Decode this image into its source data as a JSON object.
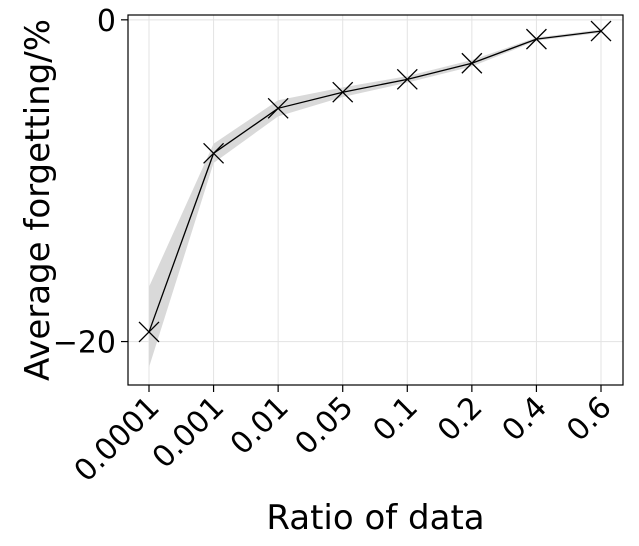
{
  "chart_data": {
    "type": "line",
    "xlabel": "Ratio of data",
    "ylabel": "Average forgetting/%",
    "categories": [
      "0.0001",
      "0.001",
      "0.01",
      "0.05",
      "0.1",
      "0.2",
      "0.4",
      "0.6"
    ],
    "series": [
      {
        "values": [
          -19.4,
          -8.3,
          -5.5,
          -4.5,
          -3.7,
          -2.7,
          -1.2,
          -0.7
        ],
        "lower": [
          -21.6,
          -8.9,
          -6.0,
          -4.8,
          -3.9,
          -2.9,
          -1.3,
          -0.8
        ],
        "upper": [
          -16.6,
          -7.7,
          -5.0,
          -4.2,
          -3.5,
          -2.5,
          -1.1,
          -0.6
        ],
        "marker": "x",
        "color": "#000000",
        "band_color": "#d9d9d9"
      }
    ],
    "yticks": [
      0,
      -20
    ],
    "ytick_labels": [
      "0",
      "−20"
    ],
    "ylim": [
      -22.7,
      0.3
    ],
    "grid": true
  }
}
